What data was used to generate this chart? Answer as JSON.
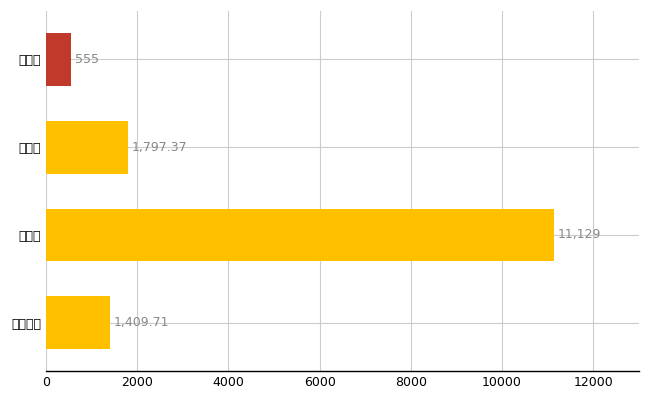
{
  "categories": [
    "羽咋市",
    "県平均",
    "県最大",
    "全国平均"
  ],
  "values": [
    555,
    1797.37,
    11129,
    1409.71
  ],
  "bar_colors": [
    "#C0392B",
    "#FFC000",
    "#FFC000",
    "#FFC000"
  ],
  "value_labels": [
    "555",
    "1,797.37",
    "11,129",
    "1,409.71"
  ],
  "xlim": [
    0,
    13000
  ],
  "xticks": [
    0,
    2000,
    4000,
    6000,
    8000,
    10000,
    12000
  ],
  "background_color": "#FFFFFF",
  "grid_color": "#CCCCCC",
  "bar_height": 0.6,
  "label_fontsize": 9,
  "tick_fontsize": 9,
  "value_label_color": "#888888",
  "ytick_color": "#000000"
}
